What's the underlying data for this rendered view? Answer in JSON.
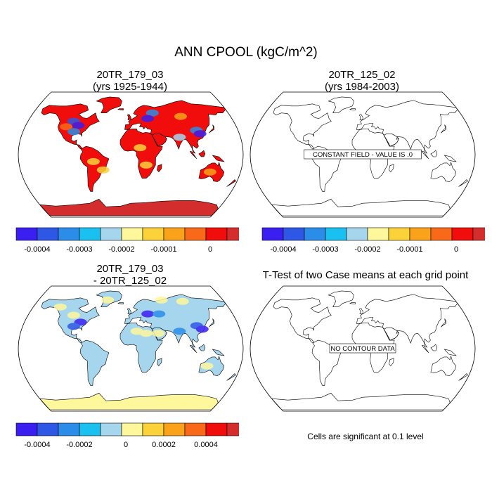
{
  "title": "ANN CPOOL (kgC/m^2)",
  "panels": [
    {
      "title_line1": "20TR_179_03",
      "title_line2": "(yrs 1925-1944)",
      "fill": "model"
    },
    {
      "title_line1": "20TR_125_02",
      "title_line2": "(yrs 1984-2003)",
      "message": "CONSTANT FIELD - VALUE IS .0"
    },
    {
      "title_line1": "20TR_179_03",
      "title_line2": "- 20TR_125_02",
      "fill": "difference"
    },
    {
      "title_line1": "T-Test of two Case means at each grid point",
      "title_line2": "",
      "message": "NO CONTOUR DATA"
    }
  ],
  "colorbars": [
    {
      "colors": [
        "#3a1ff0",
        "#2f57e6",
        "#2b8de8",
        "#1ac1f0",
        "#a6d6ee",
        "#fef79c",
        "#fcd23a",
        "#f9a21a",
        "#f86a1a",
        "#f20d0d",
        "#d42d2d"
      ],
      "labels": [
        "-0.0004",
        "-0.0003",
        "-0.0002",
        "-0.0001",
        "0"
      ]
    },
    {
      "colors": [
        "#3a1ff0",
        "#2f57e6",
        "#2b8de8",
        "#1ac1f0",
        "#a6d6ee",
        "#fef79c",
        "#fcd23a",
        "#f9a21a",
        "#f86a1a",
        "#f20d0d",
        "#d42d2d"
      ],
      "labels": [
        "-0.0004",
        "-0.0003",
        "-0.0002",
        "-0.0001",
        "0"
      ]
    },
    {
      "colors": [
        "#3a1ff0",
        "#2f57e6",
        "#2b8de8",
        "#1ac1f0",
        "#a6d6ee",
        "#fef79c",
        "#fcd23a",
        "#f9a21a",
        "#f86a1a",
        "#f20d0d",
        "#d42d2d"
      ],
      "labels": [
        "-0.0004",
        "-0.0002",
        "0",
        "0.0002",
        "0.0004"
      ]
    }
  ],
  "significance_note": "Cells are significant at 0.1 level"
}
